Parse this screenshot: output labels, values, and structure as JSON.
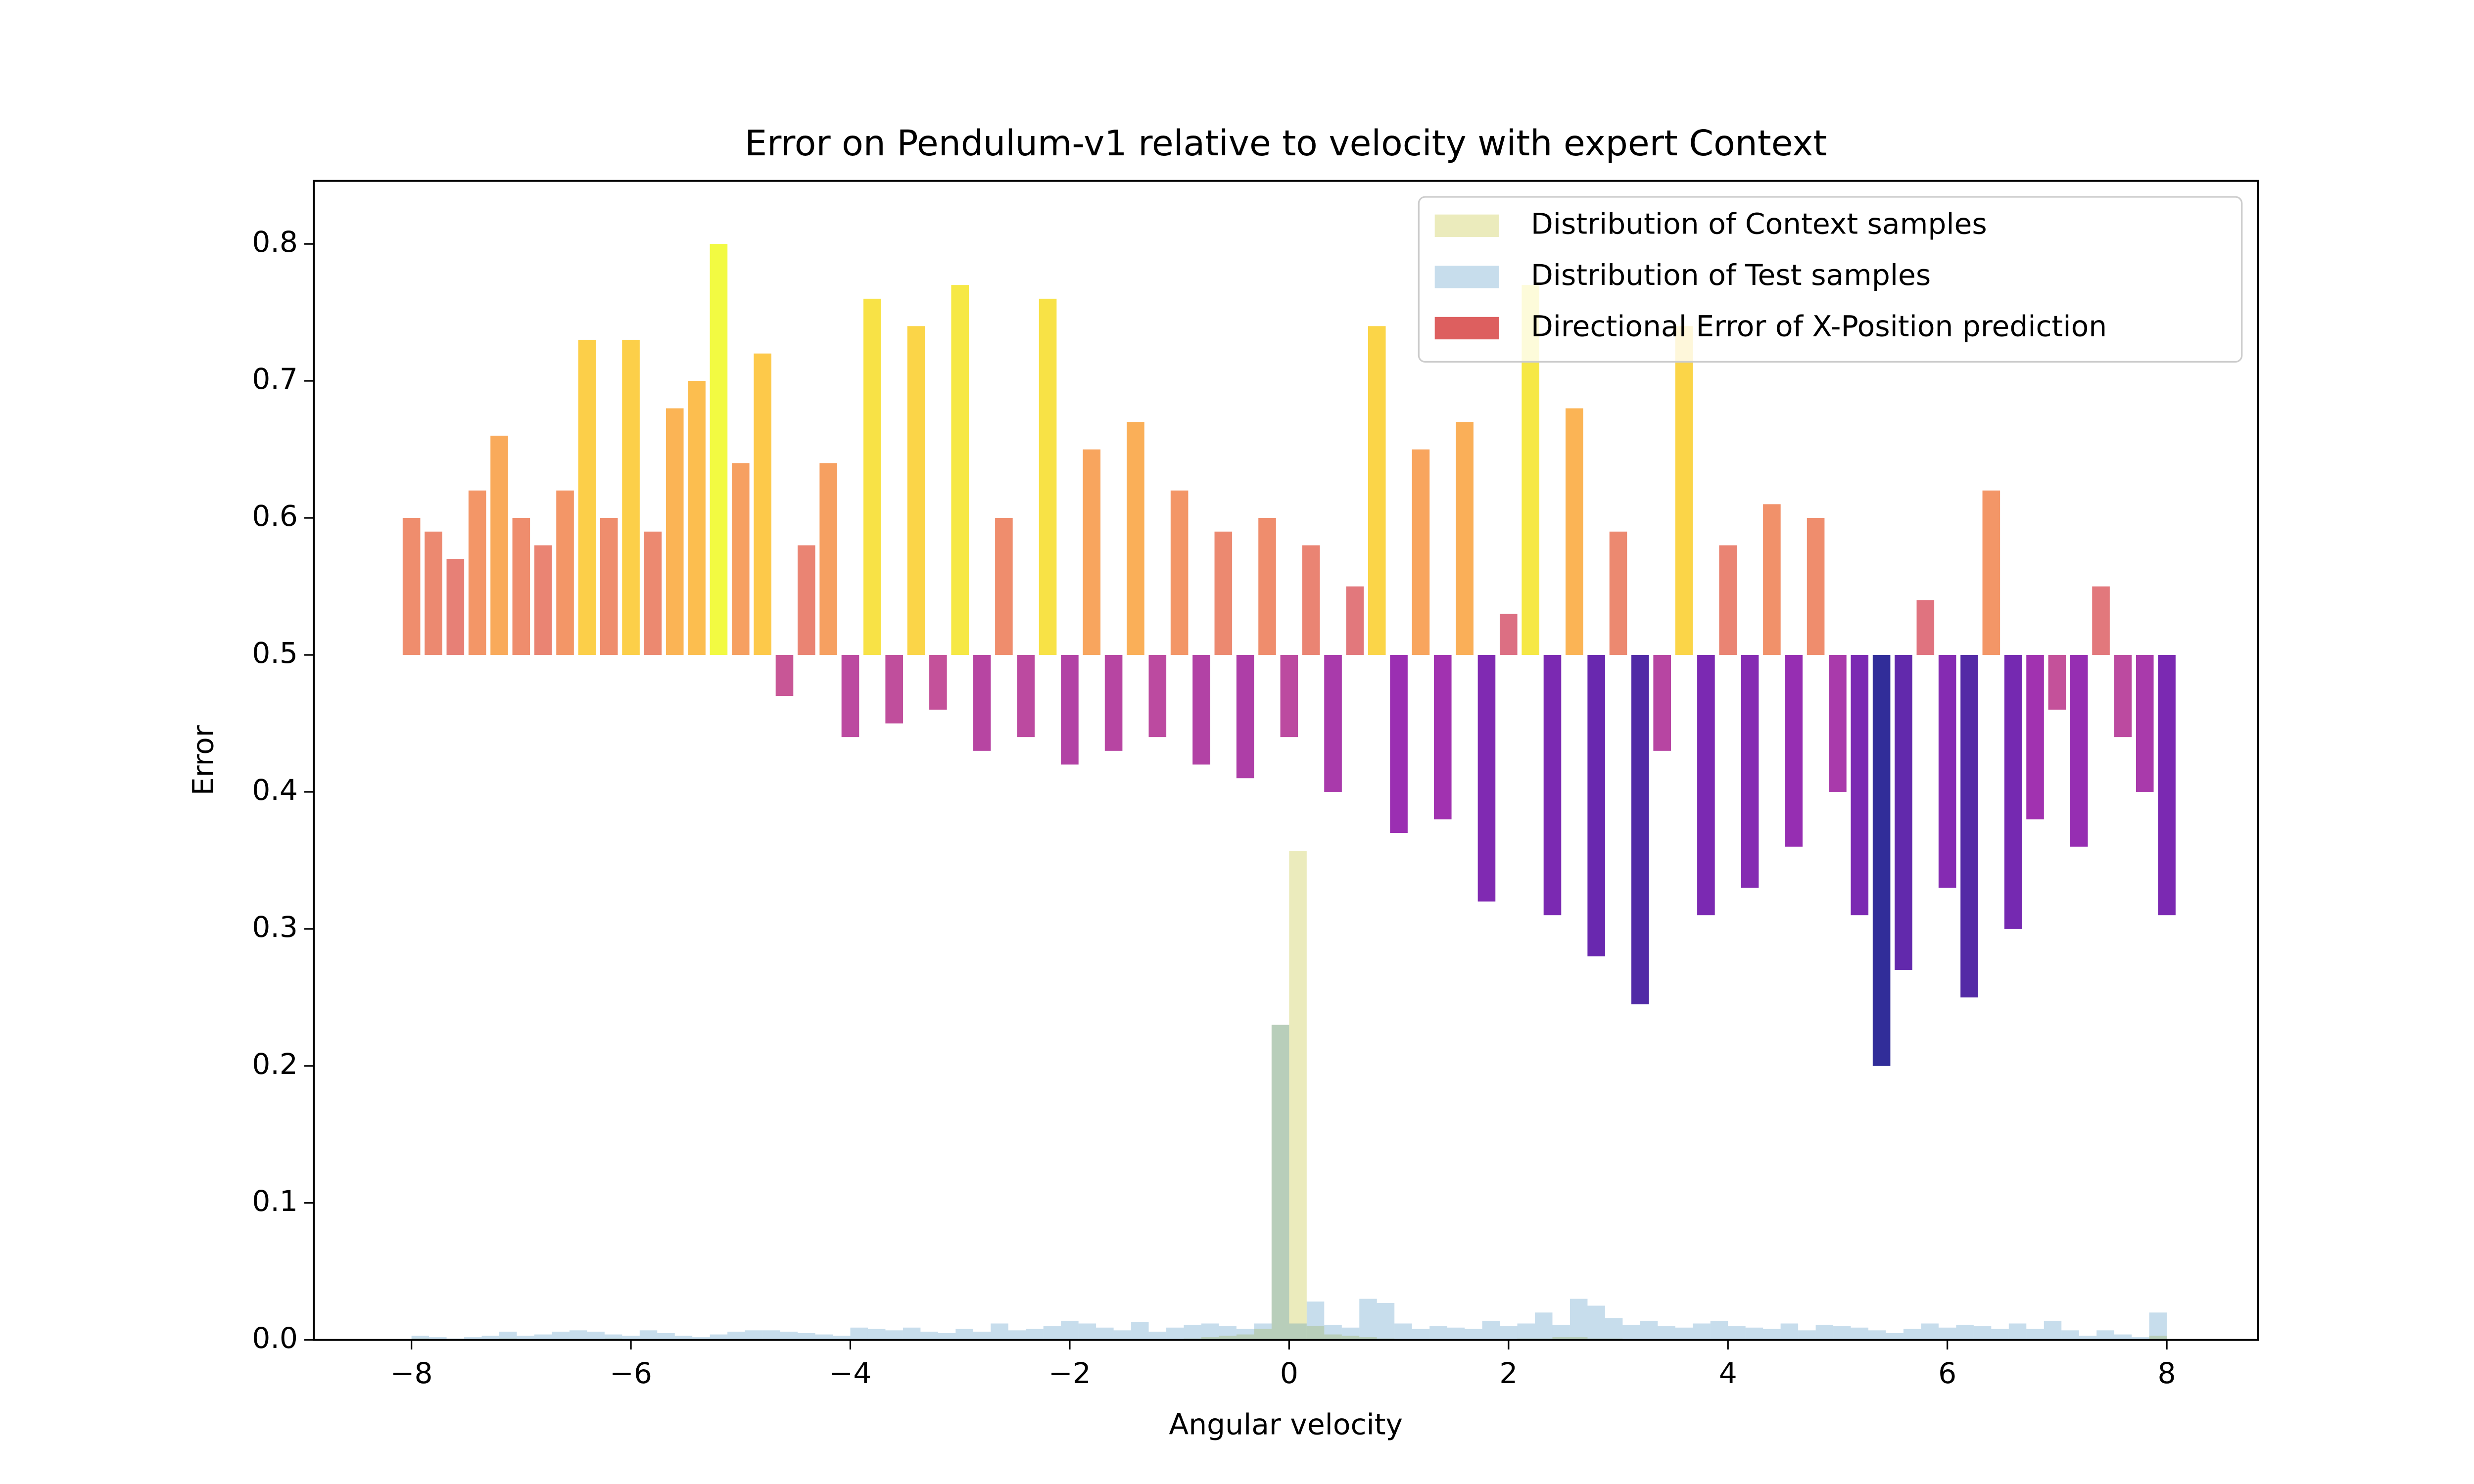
{
  "chart_data": {
    "type": "combo",
    "title": "Error on Pendulum-v1 relative to velocity with expert Context",
    "xlabel": "Angular velocity",
    "ylabel": "Error",
    "xlim": [
      -8.89,
      8.83
    ],
    "ylim": [
      0,
      0.846
    ],
    "xticks": [
      {
        "value": -8,
        "label": "−8"
      },
      {
        "value": -6,
        "label": "−6"
      },
      {
        "value": -4,
        "label": "−4"
      },
      {
        "value": -2,
        "label": "−2"
      },
      0,
      2,
      4,
      6,
      8
    ],
    "yticks": [
      {
        "value": 0,
        "label": "0.0"
      },
      0.1,
      0.2,
      0.3,
      0.4,
      0.5,
      0.6,
      0.7,
      0.8
    ],
    "legend": "upper right",
    "series": [
      {
        "name": "Distribution of Context samples",
        "type": "hist",
        "color": "#bcbd22",
        "opacity": 0.3,
        "bins": [
          -8,
          -7.84,
          -7.68,
          -7.52,
          -7.36,
          -7.2,
          -7.04,
          -6.88,
          -6.72,
          -6.56,
          -6.4,
          -6.24,
          -6.08,
          -5.92,
          -5.76,
          -5.6,
          -5.44,
          -5.28,
          -5.12,
          -4.96,
          -4.8,
          -4.64,
          -4.48,
          -4.32,
          -4.16,
          -4,
          -3.84,
          -3.68,
          -3.52,
          -3.36,
          -3.2,
          -3.04,
          -2.88,
          -2.72,
          -2.56,
          -2.4,
          -2.24,
          -2.08,
          -1.92,
          -1.76,
          -1.6,
          -1.44,
          -1.28,
          -1.12,
          -0.96,
          -0.8,
          -0.64,
          -0.48,
          -0.32,
          -0.16,
          0,
          0.16,
          0.32,
          0.48,
          0.64,
          0.8,
          0.96,
          1.12,
          1.28,
          1.44,
          1.6,
          1.76,
          1.92,
          2.08,
          2.24,
          2.4,
          2.56,
          2.72,
          2.88,
          3.04,
          3.2,
          3.36,
          3.52,
          3.68,
          3.84,
          4,
          4.16,
          4.32,
          4.48,
          4.64,
          4.8,
          4.96,
          5.12,
          5.28,
          5.44,
          5.6,
          5.76,
          5.92,
          6.08,
          6.24,
          6.4,
          6.56,
          6.72,
          6.88,
          7.04,
          7.2,
          7.36,
          7.52,
          7.68,
          7.84,
          8
        ],
        "values": [
          0.001,
          0,
          0,
          0,
          0,
          0.001,
          0,
          0,
          0,
          0,
          0,
          0.001,
          0,
          0,
          0,
          0,
          0,
          0,
          0,
          0,
          0,
          0,
          0,
          0,
          0,
          0,
          0,
          0,
          0,
          0,
          0,
          0,
          0,
          0,
          0,
          0,
          0,
          0,
          0,
          0,
          0,
          0,
          0,
          0,
          0.001,
          0.002,
          0.003,
          0.004,
          0.008,
          0.23,
          0.357,
          0.01,
          0.004,
          0.003,
          0.002,
          0.001,
          0,
          0,
          0,
          0,
          0,
          0,
          0,
          0.001,
          0.001,
          0.002,
          0.002,
          0.001,
          0.001,
          0,
          0,
          0,
          0,
          0,
          0,
          0,
          0,
          0,
          0,
          0,
          0,
          0,
          0,
          0,
          0,
          0,
          0,
          0,
          0,
          0,
          0,
          0,
          0,
          0,
          0,
          0,
          0,
          0,
          0,
          0.003
        ]
      },
      {
        "name": "Distribution of Test samples",
        "type": "hist",
        "color": "#1f77b4",
        "opacity": 0.25,
        "bins": [
          -8,
          -7.84,
          -7.68,
          -7.52,
          -7.36,
          -7.2,
          -7.04,
          -6.88,
          -6.72,
          -6.56,
          -6.4,
          -6.24,
          -6.08,
          -5.92,
          -5.76,
          -5.6,
          -5.44,
          -5.28,
          -5.12,
          -4.96,
          -4.8,
          -4.64,
          -4.48,
          -4.32,
          -4.16,
          -4,
          -3.84,
          -3.68,
          -3.52,
          -3.36,
          -3.2,
          -3.04,
          -2.88,
          -2.72,
          -2.56,
          -2.4,
          -2.24,
          -2.08,
          -1.92,
          -1.76,
          -1.6,
          -1.44,
          -1.28,
          -1.12,
          -0.96,
          -0.8,
          -0.64,
          -0.48,
          -0.32,
          -0.16,
          0,
          0.16,
          0.32,
          0.48,
          0.64,
          0.8,
          0.96,
          1.12,
          1.28,
          1.44,
          1.6,
          1.76,
          1.92,
          2.08,
          2.24,
          2.4,
          2.56,
          2.72,
          2.88,
          3.04,
          3.2,
          3.36,
          3.52,
          3.68,
          3.84,
          4,
          4.16,
          4.32,
          4.48,
          4.64,
          4.8,
          4.96,
          5.12,
          5.28,
          5.44,
          5.6,
          5.76,
          5.92,
          6.08,
          6.24,
          6.4,
          6.56,
          6.72,
          6.88,
          7.04,
          7.2,
          7.36,
          7.52,
          7.68,
          7.84,
          8
        ],
        "values": [
          0.003,
          0.002,
          0.001,
          0.002,
          0.003,
          0.006,
          0.003,
          0.004,
          0.006,
          0.007,
          0.006,
          0.004,
          0.003,
          0.007,
          0.005,
          0.003,
          0.002,
          0.004,
          0.006,
          0.007,
          0.007,
          0.006,
          0.005,
          0.004,
          0.003,
          0.009,
          0.008,
          0.007,
          0.009,
          0.006,
          0.005,
          0.008,
          0.006,
          0.012,
          0.007,
          0.008,
          0.01,
          0.014,
          0.012,
          0.009,
          0.007,
          0.013,
          0.006,
          0.009,
          0.011,
          0.012,
          0.01,
          0.008,
          0.012,
          0.23,
          0.012,
          0.028,
          0.011,
          0.009,
          0.03,
          0.027,
          0.012,
          0.008,
          0.01,
          0.009,
          0.008,
          0.014,
          0.01,
          0.012,
          0.02,
          0.011,
          0.03,
          0.025,
          0.016,
          0.011,
          0.014,
          0.01,
          0.009,
          0.012,
          0.014,
          0.01,
          0.009,
          0.008,
          0.012,
          0.007,
          0.011,
          0.01,
          0.009,
          0.007,
          0.005,
          0.008,
          0.012,
          0.009,
          0.011,
          0.01,
          0.008,
          0.012,
          0.008,
          0.014,
          0.007,
          0.003,
          0.007,
          0.004,
          0.002,
          0.02
        ]
      },
      {
        "name": "Directional Error of X-Position prediction",
        "type": "bar",
        "color": "#dd5f5f",
        "colormap": "plasma",
        "bottom": 0.5,
        "x": [
          -8,
          -7.8,
          -7.6,
          -7.4,
          -7.2,
          -7,
          -6.8,
          -6.6,
          -6.4,
          -6.2,
          -6,
          -5.8,
          -5.6,
          -5.4,
          -5.2,
          -5,
          -4.8,
          -4.6,
          -4.4,
          -4.2,
          -4,
          -3.8,
          -3.6,
          -3.4,
          -3.2,
          -3,
          -2.8,
          -2.6,
          -2.4,
          -2.2,
          -2,
          -1.8,
          -1.6,
          -1.4,
          -1.2,
          -1,
          -0.8,
          -0.6,
          -0.4,
          -0.2,
          0,
          0.2,
          0.4,
          0.6,
          0.8,
          1,
          1.2,
          1.4,
          1.6,
          1.8,
          2,
          2.2,
          2.4,
          2.6,
          2.8,
          3,
          3.2,
          3.4,
          3.6,
          3.8,
          4,
          4.2,
          4.4,
          4.6,
          4.8,
          5,
          5.2,
          5.4,
          5.6,
          5.8,
          6,
          6.2,
          6.4,
          6.6,
          6.8,
          7,
          7.2,
          7.4,
          7.6,
          7.8,
          8
        ],
        "values": [
          0.6,
          0.59,
          0.57,
          0.62,
          0.66,
          0.6,
          0.58,
          0.62,
          0.73,
          0.6,
          0.73,
          0.59,
          0.68,
          0.7,
          0.8,
          0.64,
          0.72,
          0.47,
          0.58,
          0.64,
          0.44,
          0.76,
          0.45,
          0.74,
          0.46,
          0.77,
          0.43,
          0.6,
          0.44,
          0.76,
          0.42,
          0.65,
          0.43,
          0.67,
          0.44,
          0.62,
          0.42,
          0.59,
          0.41,
          0.6,
          0.44,
          0.58,
          0.4,
          0.55,
          0.74,
          0.37,
          0.65,
          0.38,
          0.67,
          0.32,
          0.53,
          0.77,
          0.31,
          0.68,
          0.28,
          0.59,
          0.245,
          0.43,
          0.74,
          0.31,
          0.58,
          0.33,
          0.61,
          0.36,
          0.6,
          0.4,
          0.31,
          0.2,
          0.27,
          0.54,
          0.33,
          0.25,
          0.62,
          0.3,
          0.38,
          0.46,
          0.36,
          0.55,
          0.44,
          0.4,
          0.31
        ]
      }
    ]
  }
}
